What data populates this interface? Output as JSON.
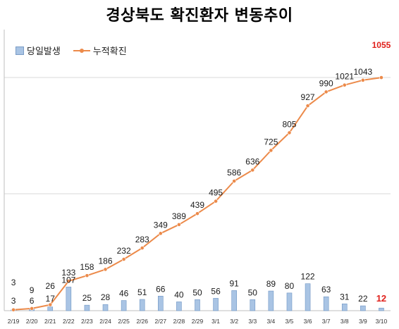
{
  "title": "경상북도 확진환자 변동추이",
  "colors": {
    "bar_fill": "#a9c4e4",
    "bar_stroke": "#6f95c4",
    "line": "#ec8a4a",
    "gridline": "#d9d9d9",
    "axis": "#bfbfbf",
    "highlight_label": "#e0201b"
  },
  "chart_data": {
    "type": "bar",
    "title": "경상북도 확진환자 변동추이",
    "legend": "top-left",
    "categories": [
      "2/19",
      "2/20",
      "2/21",
      "2/22",
      "2/23",
      "2/24",
      "2/25",
      "2/26",
      "2/27",
      "2/28",
      "2/29",
      "3/1",
      "3/2",
      "3/3",
      "3/4",
      "3/5",
      "3/6",
      "3/7",
      "3/8",
      "3/9",
      "3/10"
    ],
    "series": [
      {
        "name": "당일발생",
        "type": "bar",
        "axis": "secondary",
        "values": [
          3,
          6,
          17,
          107,
          25,
          28,
          46,
          51,
          66,
          40,
          50,
          56,
          91,
          50,
          89,
          80,
          122,
          63,
          31,
          22,
          12
        ]
      },
      {
        "name": "누적확진",
        "type": "line",
        "axis": "primary",
        "values": [
          3,
          9,
          26,
          133,
          158,
          186,
          232,
          283,
          349,
          389,
          439,
          495,
          586,
          636,
          725,
          805,
          927,
          990,
          1021,
          1043,
          1055
        ]
      }
    ],
    "highlighted_labels": [
      "1055",
      "12"
    ],
    "grid": true
  }
}
